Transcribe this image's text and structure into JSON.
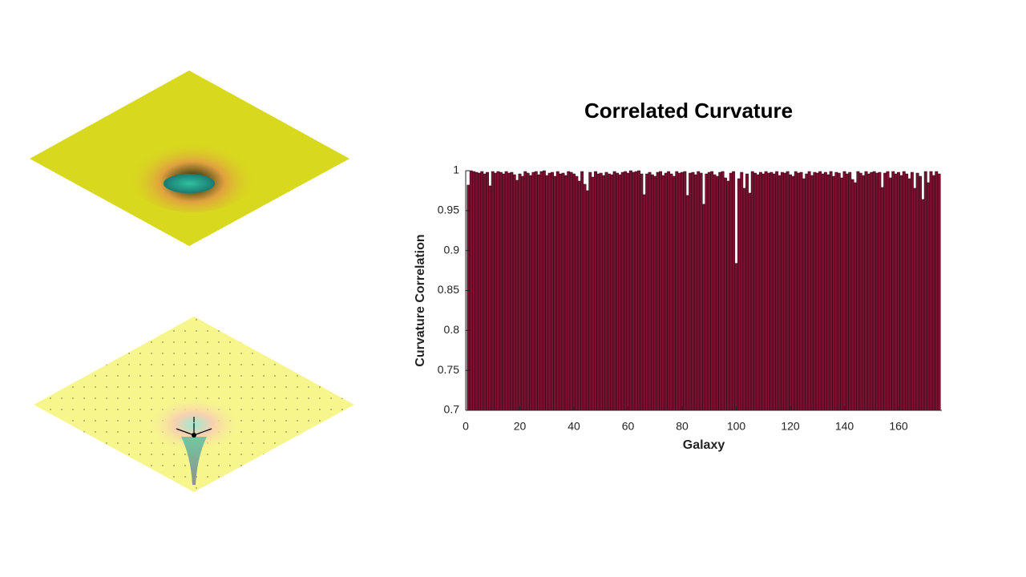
{
  "chart_data": {
    "type": "bar",
    "title": "Correlated Curvature",
    "xlabel": "Galaxy",
    "ylabel": "Curvature Correlation",
    "color": "#7a1030",
    "edgecolor": "#2a0612",
    "xlim": [
      0,
      176
    ],
    "xticks": [
      0,
      20,
      40,
      60,
      80,
      100,
      120,
      140,
      160
    ],
    "ylim": [
      0.7,
      1
    ],
    "yticks": [
      0.7,
      0.75,
      0.8,
      0.85,
      0.9,
      0.95,
      1
    ],
    "x": [
      1,
      2,
      3,
      4,
      5,
      6,
      7,
      8,
      9,
      10,
      11,
      12,
      13,
      14,
      15,
      16,
      17,
      18,
      19,
      20,
      21,
      22,
      23,
      24,
      25,
      26,
      27,
      28,
      29,
      30,
      31,
      32,
      33,
      34,
      35,
      36,
      37,
      38,
      39,
      40,
      41,
      42,
      43,
      44,
      45,
      46,
      47,
      48,
      49,
      50,
      51,
      52,
      53,
      54,
      55,
      56,
      57,
      58,
      59,
      60,
      61,
      62,
      63,
      64,
      65,
      66,
      67,
      68,
      69,
      70,
      71,
      72,
      73,
      74,
      75,
      76,
      77,
      78,
      79,
      80,
      81,
      82,
      83,
      84,
      85,
      86,
      87,
      88,
      89,
      90,
      91,
      92,
      93,
      94,
      95,
      96,
      97,
      98,
      99,
      100,
      101,
      102,
      103,
      104,
      105,
      106,
      107,
      108,
      109,
      110,
      111,
      112,
      113,
      114,
      115,
      116,
      117,
      118,
      119,
      120,
      121,
      122,
      123,
      124,
      125,
      126,
      127,
      128,
      129,
      130,
      131,
      132,
      133,
      134,
      135,
      136,
      137,
      138,
      139,
      140,
      141,
      142,
      143,
      144,
      145,
      146,
      147,
      148,
      149,
      150,
      151,
      152,
      153,
      154,
      155,
      156,
      157,
      158,
      159,
      160,
      161,
      162,
      163,
      164,
      165,
      166,
      167,
      168,
      169,
      170,
      171,
      172,
      173,
      174,
      175
    ],
    "values": [
      0.982,
      1.0,
      0.999,
      0.998,
      0.997,
      0.999,
      0.996,
      0.998,
      0.981,
      0.999,
      0.997,
      0.999,
      0.998,
      0.996,
      0.999,
      0.997,
      0.998,
      0.995,
      0.988,
      0.996,
      0.993,
      0.999,
      0.997,
      0.994,
      0.998,
      0.999,
      0.995,
      0.999,
      1.0,
      0.994,
      0.997,
      0.998,
      0.993,
      0.999,
      0.996,
      0.997,
      0.994,
      0.999,
      0.998,
      0.996,
      0.993,
      0.987,
      0.999,
      0.983,
      0.975,
      0.998,
      0.992,
      0.999,
      0.996,
      0.997,
      0.994,
      0.998,
      0.996,
      0.995,
      0.999,
      0.997,
      0.995,
      0.998,
      0.999,
      0.997,
      1.0,
      0.998,
      0.999,
      1.0,
      0.996,
      0.97,
      0.996,
      0.998,
      0.995,
      0.993,
      0.998,
      0.999,
      0.994,
      0.997,
      0.999,
      0.996,
      0.993,
      0.999,
      0.997,
      0.998,
      0.999,
      0.969,
      0.997,
      0.998,
      0.995,
      0.999,
      0.997,
      0.958,
      0.996,
      0.998,
      0.999,
      0.995,
      0.993,
      0.998,
      0.999,
      0.991,
      0.987,
      0.997,
      0.999,
      0.884,
      0.99,
      0.998,
      0.978,
      0.996,
      0.972,
      0.999,
      0.997,
      0.995,
      0.998,
      0.996,
      0.999,
      0.997,
      0.998,
      0.996,
      0.999,
      0.994,
      0.998,
      0.997,
      0.999,
      0.995,
      0.993,
      0.999,
      0.997,
      0.998,
      0.99,
      0.996,
      0.999,
      0.994,
      0.998,
      0.997,
      0.999,
      0.996,
      0.998,
      0.995,
      0.999,
      0.993,
      0.998,
      0.997,
      0.991,
      0.999,
      0.996,
      0.998,
      0.989,
      0.985,
      0.999,
      0.997,
      0.994,
      0.999,
      0.996,
      0.998,
      0.999,
      0.997,
      0.998,
      0.979,
      0.997,
      0.999,
      0.991,
      0.999,
      0.996,
      0.998,
      0.994,
      0.999,
      0.996,
      0.99,
      0.998,
      0.978,
      0.997,
      0.993,
      0.964,
      0.999,
      0.985,
      0.999,
      0.994,
      0.999,
      0.996
    ]
  }
}
